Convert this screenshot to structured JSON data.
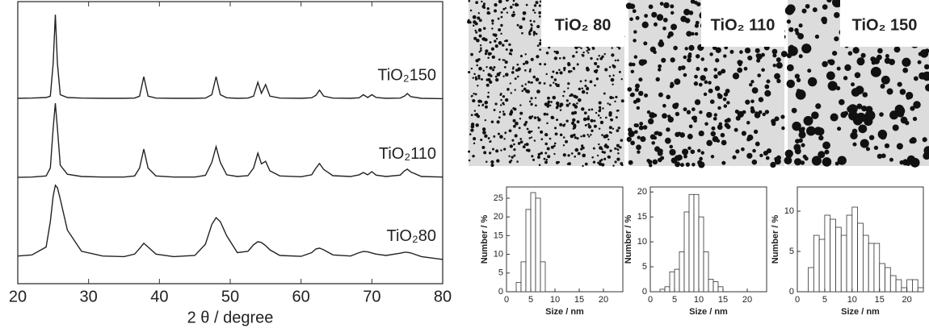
{
  "chart_data": [
    {
      "type": "line",
      "xlabel": "2 θ / degree",
      "xlim": [
        20,
        80
      ],
      "xticks": [
        20,
        30,
        40,
        50,
        60,
        70,
        80
      ],
      "ylim": [
        0,
        100
      ],
      "x": [
        20,
        22,
        24,
        24.6,
        25.0,
        25.3,
        25.6,
        26,
        27,
        29,
        32,
        35,
        36.5,
        37.2,
        37.8,
        38.4,
        39.5,
        42,
        45,
        46.5,
        47.4,
        48,
        48.6,
        49.5,
        51,
        52.5,
        53.3,
        53.9,
        54.4,
        55,
        55.6,
        57,
        60,
        61.5,
        62.1,
        62.6,
        63.2,
        64.5,
        67,
        68.2,
        68.8,
        69.4,
        70,
        70.6,
        72,
        74,
        74.6,
        75,
        75.5,
        77,
        80
      ],
      "series": [
        {
          "name": "TiO₂150",
          "color": "#222222",
          "values": [
            65.7,
            65.8,
            66,
            66.5,
            78,
            95.4,
            78,
            67,
            66,
            65.8,
            65.7,
            65.7,
            65.8,
            66.5,
            73.4,
            66.5,
            65.8,
            65.7,
            65.7,
            65.8,
            67,
            73.4,
            67,
            65.9,
            65.7,
            65.8,
            66.5,
            71.4,
            67.5,
            70.6,
            66.5,
            65.8,
            65.7,
            65.9,
            66.8,
            68.6,
            66.5,
            65.8,
            65.7,
            65.9,
            67,
            66,
            67,
            66,
            65.7,
            65.8,
            66.5,
            67.4,
            66.3,
            65.7,
            65.6
          ]
        },
        {
          "name": "TiO₂110",
          "color": "#222222",
          "values": [
            37.7,
            37.8,
            38.2,
            41,
            55,
            64,
            55,
            42,
            38.8,
            38,
            37.8,
            37.8,
            38.2,
            41,
            47.7,
            41,
            38.2,
            37.8,
            37.8,
            38.4,
            43,
            48.6,
            43,
            38.6,
            38,
            38.3,
            41,
            46.3,
            42.5,
            43.4,
            40,
            38.2,
            37.9,
            38.6,
            41,
            42.6,
            40.5,
            38.3,
            38,
            38.6,
            39.4,
            38.6,
            39.7,
            38.5,
            38,
            38.5,
            40,
            40.6,
            39.6,
            38,
            37.8
          ]
        },
        {
          "name": "TiO₂80",
          "color": "#222222",
          "values": [
            9.8,
            10.2,
            13,
            22,
            31,
            34.9,
            34,
            30,
            19,
            11.5,
            9.8,
            9.6,
            10.5,
            12.5,
            14.3,
            13,
            10.5,
            9.6,
            10,
            14,
            21,
            23.4,
            22,
            17,
            11,
            11.5,
            13.8,
            14.9,
            14.6,
            13.5,
            12,
            10,
            9.7,
            11,
            12.3,
            12.6,
            12,
            10.2,
            9.8,
            11,
            11.4,
            11.3,
            10.9,
            10.5,
            10,
            10.8,
            11.1,
            11.1,
            10.9,
            9.6,
            8.6
          ]
        }
      ]
    },
    {
      "type": "histogram",
      "xlabel": "Size / nm",
      "ylabel": "Number / %",
      "color": "#ffffff",
      "bins": [
        2,
        3,
        4,
        5,
        6,
        7,
        8
      ],
      "values": [
        2.5,
        8,
        22,
        26.5,
        25,
        8
      ],
      "xlim": [
        0,
        24
      ],
      "xticks": [
        0,
        5,
        10,
        15,
        20
      ],
      "ylim": [
        0,
        28
      ],
      "yticks": [
        0,
        5,
        10,
        15,
        20,
        25
      ]
    },
    {
      "type": "histogram",
      "xlabel": "Size / nm",
      "ylabel": "Number / %",
      "color": "#ffffff",
      "bins": [
        2,
        3,
        4,
        5,
        6,
        7,
        8,
        9,
        10,
        11,
        12,
        13,
        14,
        15
      ],
      "values": [
        0.5,
        1,
        4,
        4.5,
        8,
        16,
        19.5,
        19.5,
        15,
        8,
        2.5,
        2,
        1
      ],
      "xlim": [
        0,
        24
      ],
      "xticks": [
        0,
        5,
        10,
        15,
        20
      ],
      "ylim": [
        0,
        21
      ],
      "yticks": [
        0,
        5,
        10,
        15,
        20
      ]
    },
    {
      "type": "histogram",
      "xlabel": "Size / nm",
      "ylabel": "Number / %",
      "color": "#ffffff",
      "bins": [
        2,
        3,
        4,
        5,
        6,
        7,
        8,
        9,
        10,
        11,
        12,
        13,
        14,
        15,
        16,
        17,
        18,
        19,
        20,
        21,
        22,
        23
      ],
      "values": [
        3,
        7,
        6.5,
        9.5,
        9,
        8,
        7,
        9.5,
        10.5,
        8.5,
        7,
        6,
        6,
        3.5,
        3,
        2,
        1.5,
        0.5,
        1.5,
        1.5,
        0.5
      ],
      "xlim": [
        0,
        23
      ],
      "xticks": [
        0,
        5,
        10,
        15,
        20
      ],
      "ylim": [
        0,
        13
      ],
      "yticks": [
        0,
        5,
        10
      ]
    }
  ],
  "tem_images": [
    {
      "label": "TiO₂ 80"
    },
    {
      "label": "TiO₂ 110"
    },
    {
      "label": "TiO₂ 150"
    }
  ]
}
